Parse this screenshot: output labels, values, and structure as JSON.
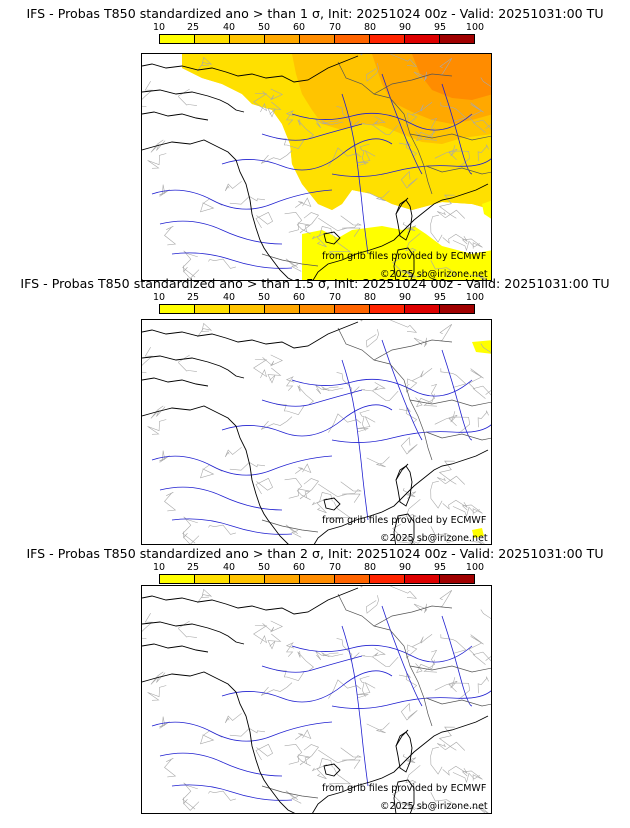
{
  "colorbar": {
    "ticks": [
      "10",
      "25",
      "40",
      "50",
      "60",
      "70",
      "80",
      "90",
      "95",
      "100"
    ],
    "colors": [
      "#ffff00",
      "#ffe000",
      "#ffc400",
      "#ffa800",
      "#ff8c00",
      "#ff6400",
      "#ff2400",
      "#dd0000",
      "#a00000",
      "#600000"
    ]
  },
  "panels": [
    {
      "title": "IFS - Probas T850  standardized ano > than 1 σ, Init: 20251024 00z - Valid: 20251031:00 TU",
      "credit": "from grib files provided by ECMWF",
      "copyright": "©2025 sb@irizone.net",
      "coverage": "large"
    },
    {
      "title": "IFS - Probas T850  standardized ano > than 1.5 σ, Init: 20251024 00z - Valid: 20251031:00 TU",
      "credit": "from grib files provided by ECMWF",
      "copyright": "©2025 sb@irizone.net",
      "coverage": "tiny"
    },
    {
      "title": "IFS - Probas T850  standardized ano > than 2 σ, Init: 20251024 00z - Valid: 20251031:00 TU",
      "credit": "from grib files provided by ECMWF",
      "copyright": "©2025 sb@irizone.net",
      "coverage": "none"
    }
  ]
}
